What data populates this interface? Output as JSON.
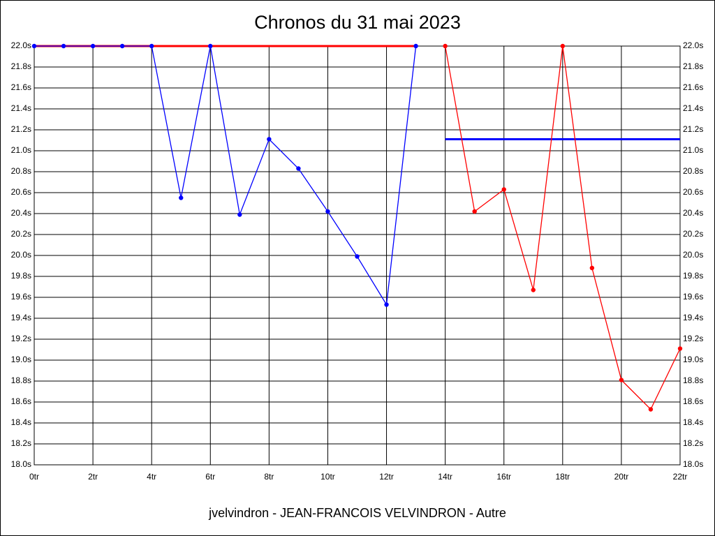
{
  "chart_data": {
    "type": "line",
    "title": "Chronos du 31 mai 2023",
    "x_label": "jvelvindron - JEAN-FRANCOIS VELVINDRON - Autre",
    "x": [
      0,
      1,
      2,
      3,
      4,
      5,
      6,
      7,
      8,
      9,
      10,
      11,
      12,
      13,
      14,
      15,
      16,
      17,
      18,
      19,
      20,
      21,
      22
    ],
    "series": [
      {
        "color": "#ff0000",
        "markers": false,
        "values": [
          22.0,
          22.0,
          22.0,
          22.0,
          22.0,
          22.0,
          22.0,
          22.0,
          22.0,
          22.0,
          22.0,
          22.0,
          22.0,
          22.0,
          null,
          null,
          null,
          null,
          null,
          null,
          null,
          null,
          null
        ]
      },
      {
        "color": "#0000ff",
        "markers": true,
        "values": [
          22.0,
          22.0,
          22.0,
          22.0,
          22.0,
          20.55,
          22.0,
          20.39,
          21.11,
          20.83,
          20.42,
          19.99,
          19.53,
          22.0,
          null,
          null,
          null,
          null,
          null,
          null,
          null,
          null,
          null
        ]
      },
      {
        "color": "#0000ff",
        "markers": false,
        "values": [
          null,
          null,
          null,
          null,
          null,
          null,
          null,
          null,
          null,
          null,
          null,
          null,
          null,
          null,
          21.11,
          21.11,
          21.11,
          21.11,
          21.11,
          21.11,
          21.11,
          21.11,
          21.11
        ]
      },
      {
        "color": "#ff0000",
        "markers": true,
        "values": [
          null,
          null,
          null,
          null,
          null,
          null,
          null,
          null,
          null,
          null,
          null,
          null,
          null,
          null,
          22.0,
          20.42,
          20.63,
          19.67,
          22.0,
          19.88,
          18.81,
          18.53,
          19.11
        ]
      }
    ],
    "xlim": [
      0,
      22
    ],
    "xticks": [
      {
        "value": 0,
        "label": "0tr"
      },
      {
        "value": 2,
        "label": "2tr"
      },
      {
        "value": 4,
        "label": "4tr"
      },
      {
        "value": 6,
        "label": "6tr"
      },
      {
        "value": 8,
        "label": "8tr"
      },
      {
        "value": 10,
        "label": "10tr"
      },
      {
        "value": 12,
        "label": "12tr"
      },
      {
        "value": 14,
        "label": "14tr"
      },
      {
        "value": 16,
        "label": "16tr"
      },
      {
        "value": 18,
        "label": "18tr"
      },
      {
        "value": 20,
        "label": "20tr"
      },
      {
        "value": 22,
        "label": "22tr"
      }
    ],
    "ylim": [
      18.0,
      22.0
    ],
    "yticks": [
      {
        "value": 18.0,
        "label": "18.0s"
      },
      {
        "value": 18.2,
        "label": "18.2s"
      },
      {
        "value": 18.4,
        "label": "18.4s"
      },
      {
        "value": 18.6,
        "label": "18.6s"
      },
      {
        "value": 18.8,
        "label": "18.8s"
      },
      {
        "value": 19.0,
        "label": "19.0s"
      },
      {
        "value": 19.2,
        "label": "19.2s"
      },
      {
        "value": 19.4,
        "label": "19.4s"
      },
      {
        "value": 19.6,
        "label": "19.6s"
      },
      {
        "value": 19.8,
        "label": "19.8s"
      },
      {
        "value": 20.0,
        "label": "20.0s"
      },
      {
        "value": 20.2,
        "label": "20.2s"
      },
      {
        "value": 20.4,
        "label": "20.4s"
      },
      {
        "value": 20.6,
        "label": "20.6s"
      },
      {
        "value": 20.8,
        "label": "20.8s"
      },
      {
        "value": 21.0,
        "label": "21.0s"
      },
      {
        "value": 21.2,
        "label": "21.2s"
      },
      {
        "value": 21.4,
        "label": "21.4s"
      },
      {
        "value": 21.6,
        "label": "21.6s"
      },
      {
        "value": 21.8,
        "label": "21.8s"
      },
      {
        "value": 22.0,
        "label": "22.0s"
      }
    ],
    "grid": true
  }
}
